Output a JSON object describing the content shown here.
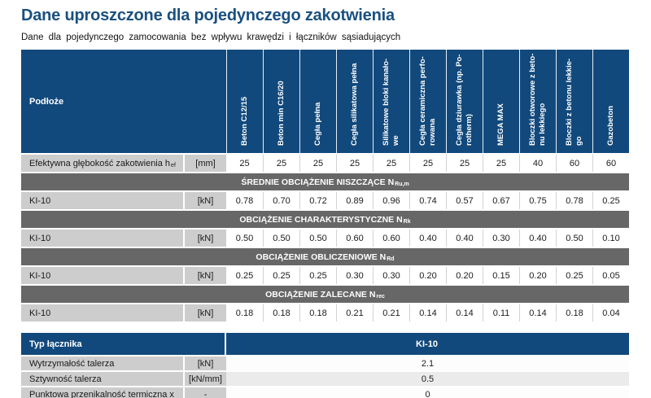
{
  "page": {
    "title": "Dane uproszczone dla pojedynczego zakotwienia",
    "subtitle": "Dane dla pojedynczego zamocowania bez wpływu krawędzi i łączników sąsiadujących"
  },
  "colors": {
    "header_navy": "#12497c",
    "section_gray": "#676767",
    "label_gray": "#cdcdcd",
    "alt_row_gray": "#ebebeb",
    "title_blue": "#1a5080"
  },
  "table1": {
    "corner_label": "Podłoże",
    "columns": [
      [
        "Beton C12/15"
      ],
      [
        "Beton min C16/20"
      ],
      [
        "Cegła pełna"
      ],
      [
        "Cegła silikatowa pełna"
      ],
      [
        "Silikatowe bloki kanało-",
        "we"
      ],
      [
        "Cegła ceramiczna perfo-",
        "rowana"
      ],
      [
        "Cegła dziurawka (np. Po-",
        "rotherm)"
      ],
      [
        "MEGA MAX"
      ],
      [
        "Bloczki otworowe z beto-",
        "nu lekkiego"
      ],
      [
        "Bloczki z betonu lekkie-",
        "go"
      ],
      [
        "Gazobeton"
      ]
    ],
    "rows": [
      {
        "type": "data",
        "label": "Efektywna głębokość zakotwienia h",
        "label_sub": "ef",
        "unit": "[mm]",
        "values": [
          "25",
          "25",
          "25",
          "25",
          "25",
          "25",
          "25",
          "25",
          "40",
          "60",
          "60"
        ]
      },
      {
        "type": "section",
        "text": "ŚREDNIE OBCIĄŻENIE NISZCZĄCE N",
        "sub": "Ru,m"
      },
      {
        "type": "data",
        "label": "KI-10",
        "label_sub": "",
        "unit": "[kN]",
        "values": [
          "0.78",
          "0.70",
          "0.72",
          "0.89",
          "0.96",
          "0.74",
          "0.57",
          "0.67",
          "0.75",
          "0.78",
          "0.25"
        ]
      },
      {
        "type": "section",
        "text": "OBCIĄŻENIE CHARAKTERYSTYCZNE N",
        "sub": "Rk"
      },
      {
        "type": "data",
        "label": "KI-10",
        "label_sub": "",
        "unit": "[kN]",
        "values": [
          "0.50",
          "0.50",
          "0.50",
          "0.60",
          "0.60",
          "0.40",
          "0.40",
          "0.30",
          "0.40",
          "0.50",
          "0.10"
        ]
      },
      {
        "type": "section",
        "text": "OBCIĄŻENIE OBLICZENIOWE N",
        "sub": "Rd"
      },
      {
        "type": "data",
        "label": "KI-10",
        "label_sub": "",
        "unit": "[kN]",
        "values": [
          "0.25",
          "0.25",
          "0.25",
          "0.30",
          "0.30",
          "0.20",
          "0.20",
          "0.15",
          "0.20",
          "0.25",
          "0.05"
        ]
      },
      {
        "type": "section",
        "text": "OBCIĄŻENIE ZALECANE N",
        "sub": "rec"
      },
      {
        "type": "data",
        "label": "KI-10",
        "label_sub": "",
        "unit": "[kN]",
        "values": [
          "0.18",
          "0.18",
          "0.18",
          "0.21",
          "0.21",
          "0.14",
          "0.14",
          "0.11",
          "0.14",
          "0.18",
          "0.04"
        ]
      }
    ]
  },
  "table2": {
    "header_label": "Typ łącznika",
    "header_value": "KI-10",
    "rows": [
      {
        "label": "Wytrzymałość talerza",
        "unit": "[kN]",
        "value": "2.1"
      },
      {
        "label": "Sztywność talerza",
        "unit": "[kN/mm]",
        "value": "0.5"
      },
      {
        "label": "Punktowa przenikalność termiczna x",
        "unit": "-",
        "value": "0"
      }
    ]
  }
}
